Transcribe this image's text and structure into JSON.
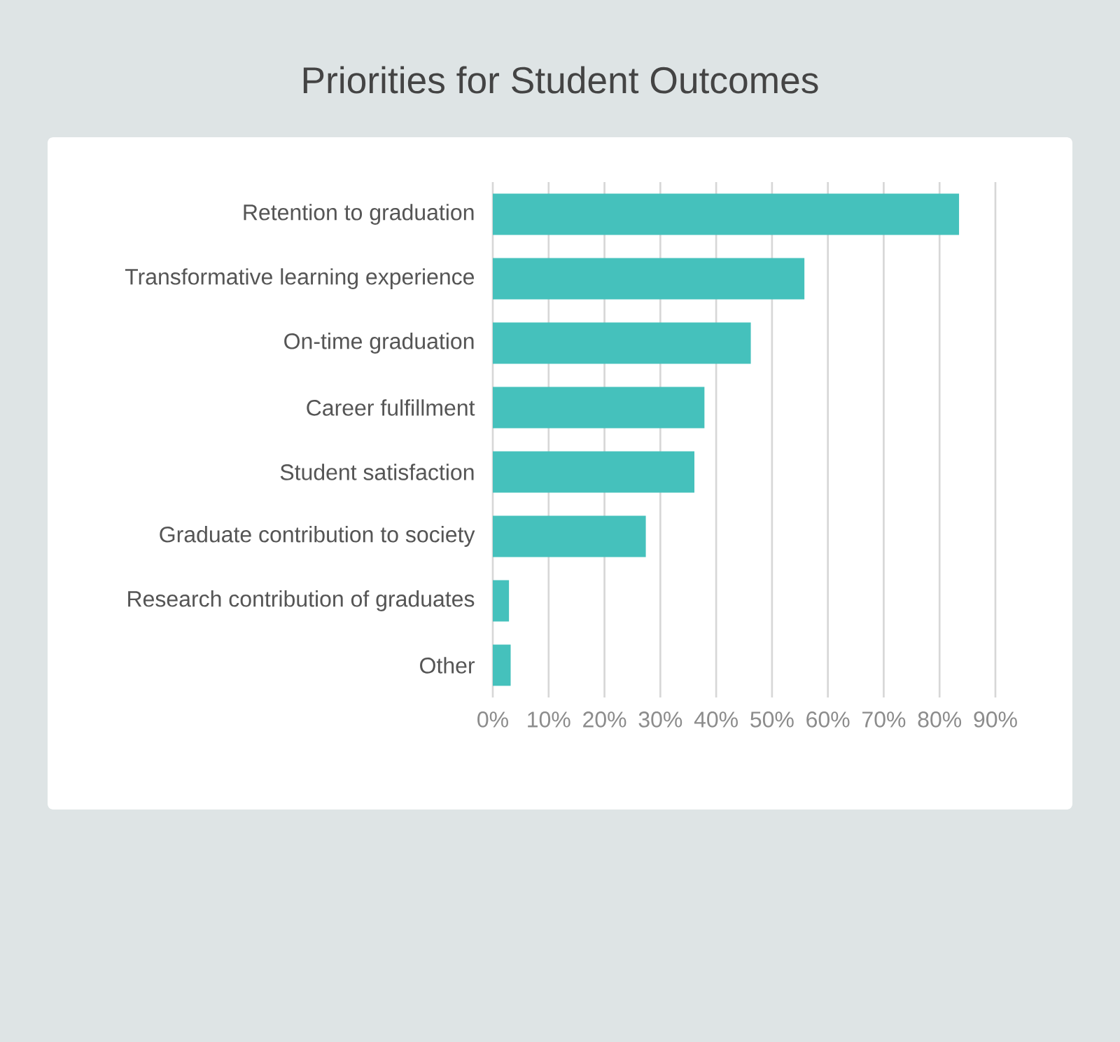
{
  "chart_data": {
    "type": "bar",
    "orientation": "horizontal",
    "title": "Priorities for Student Outcomes",
    "categories": [
      "Retention to graduation",
      "Transformative learning experience",
      "On-time graduation",
      "Career fulfillment",
      "Student satisfaction",
      "Graduate contribution to society",
      "Research contribution of graduates",
      "Other"
    ],
    "values": [
      83.5,
      55.8,
      46.2,
      37.9,
      36.1,
      27.4,
      2.9,
      3.2
    ],
    "color": "#45c1bc",
    "xlim": [
      0,
      90
    ],
    "xticks": [
      {
        "value": 0,
        "label": "0%"
      },
      {
        "value": 10,
        "label": "10%"
      },
      {
        "value": 20,
        "label": "20%"
      },
      {
        "value": 30,
        "label": "30%"
      },
      {
        "value": 40,
        "label": "40%"
      },
      {
        "value": 50,
        "label": "50%"
      },
      {
        "value": 60,
        "label": "60%"
      },
      {
        "value": 70,
        "label": "70%"
      },
      {
        "value": 80,
        "label": "80%"
      },
      {
        "value": 90,
        "label": "90%"
      }
    ],
    "grid": "x"
  }
}
